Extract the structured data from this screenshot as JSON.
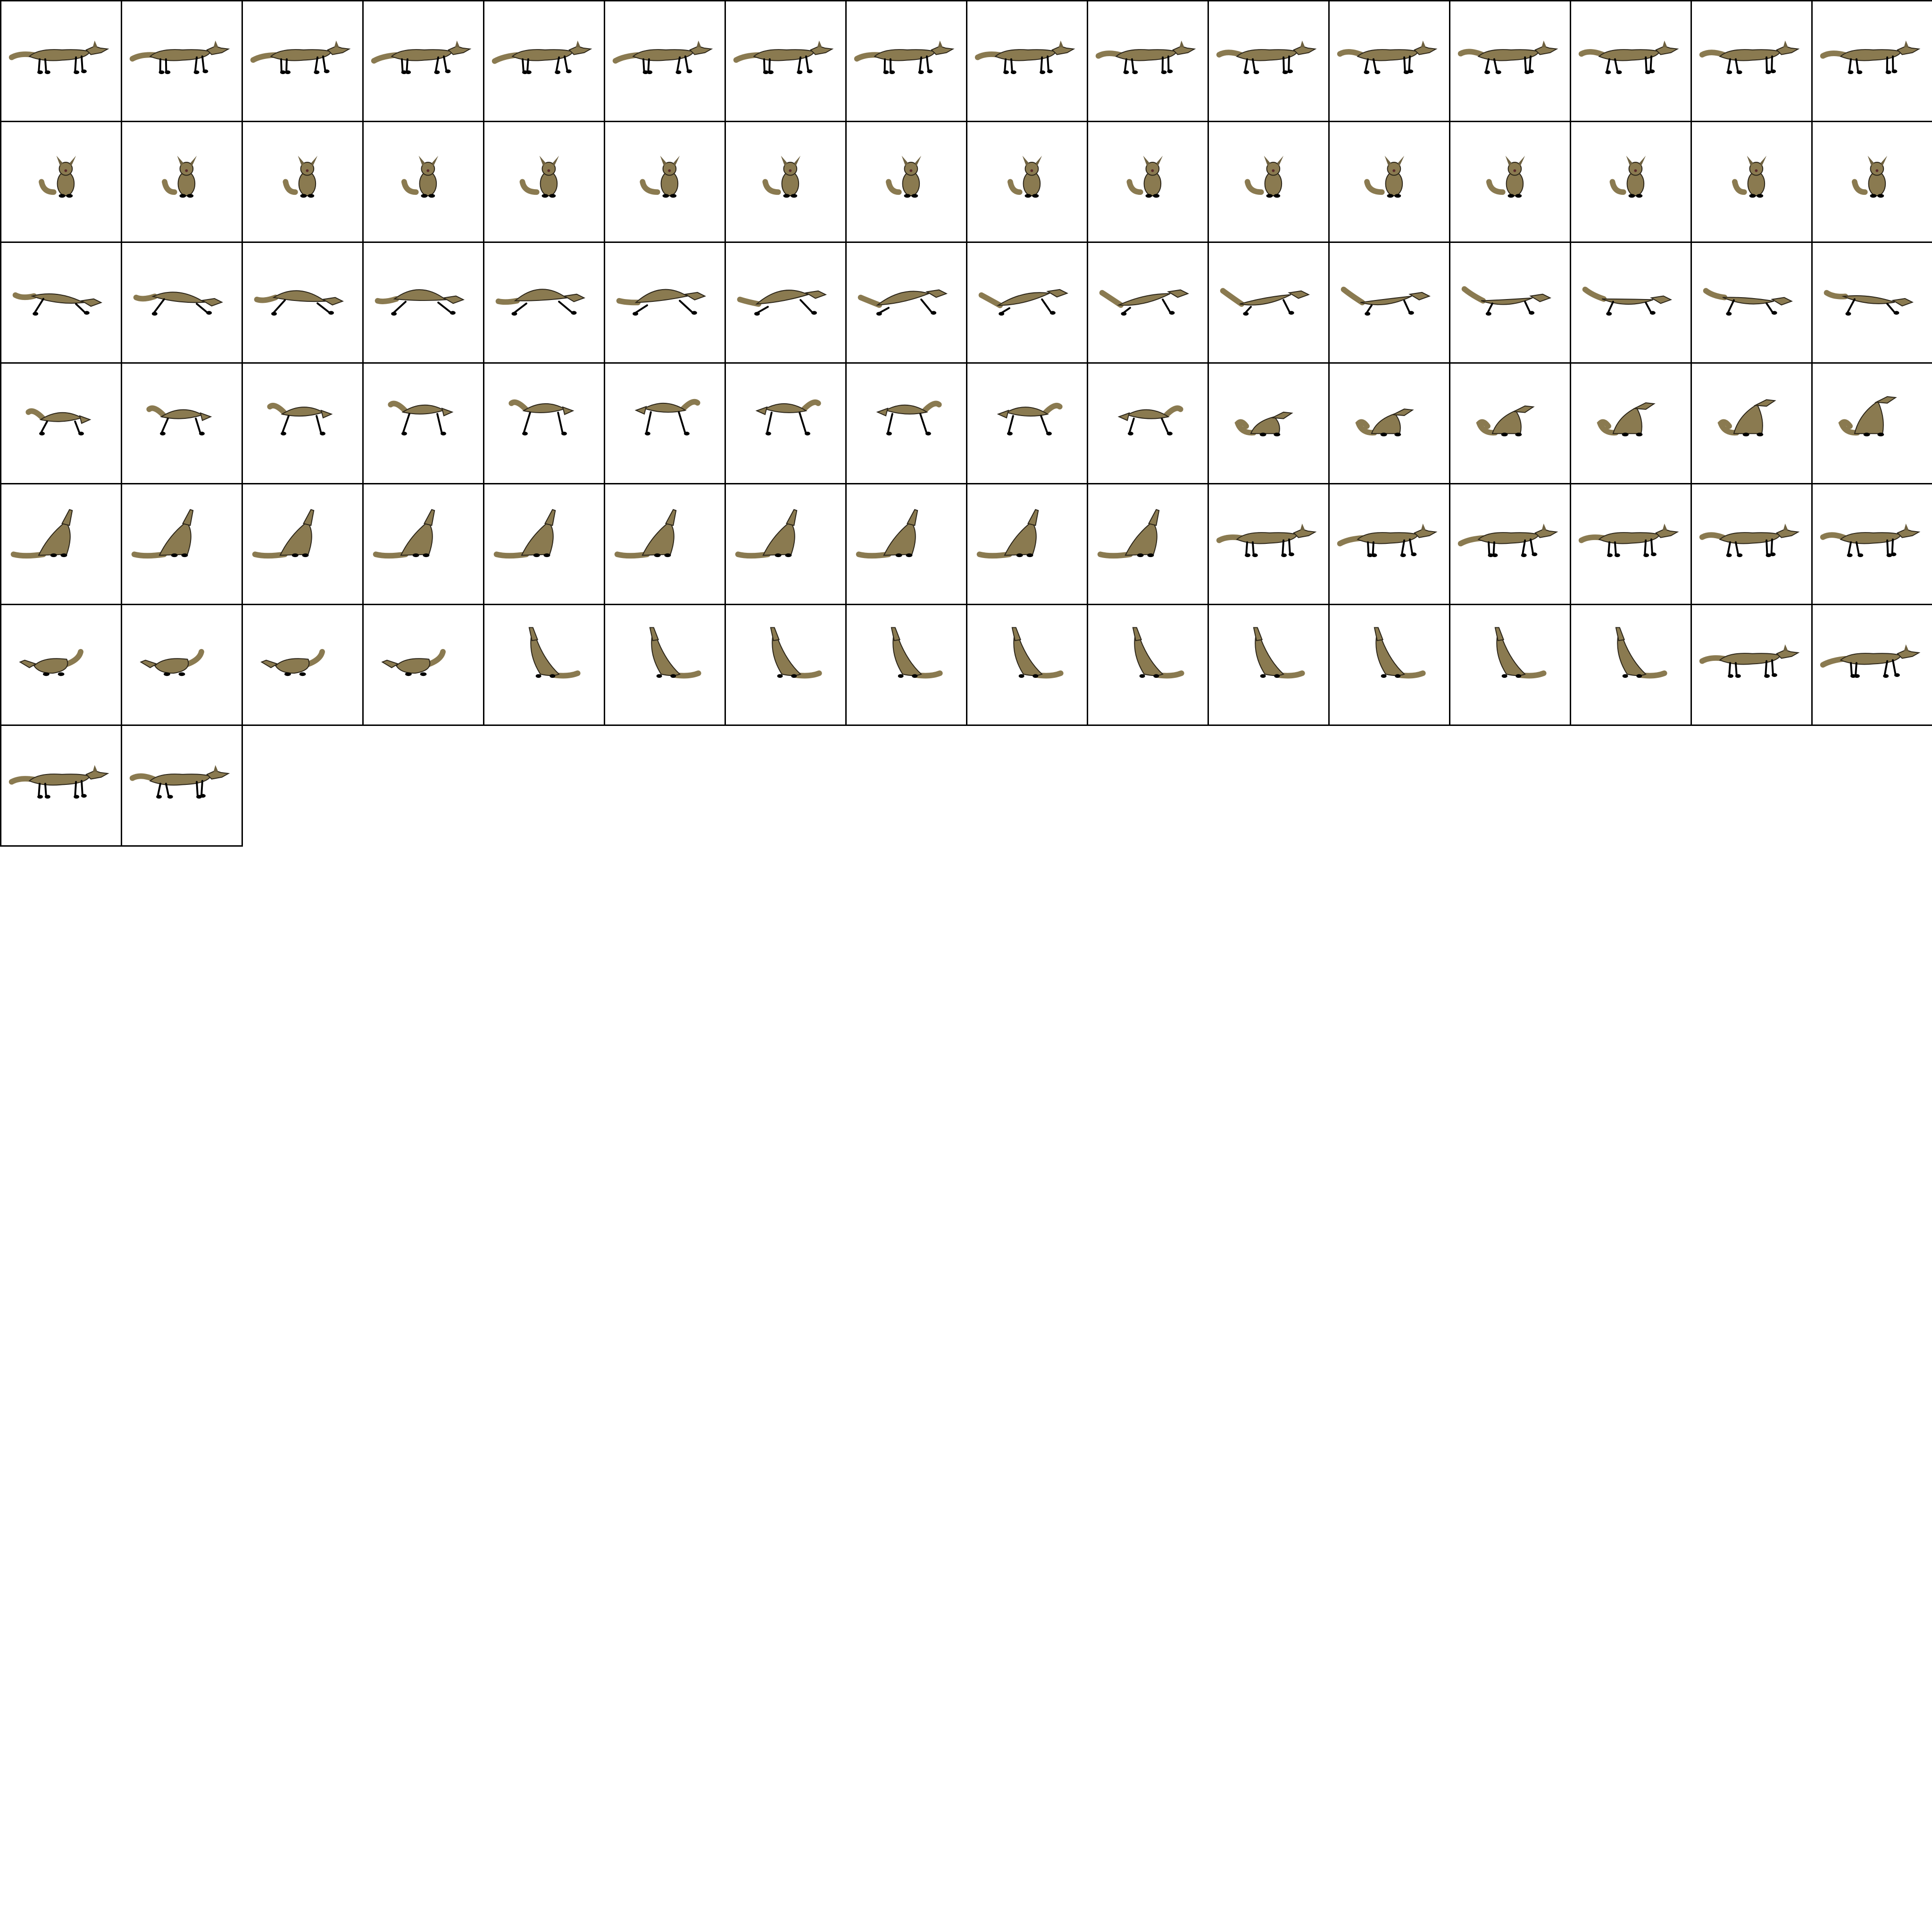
{
  "sprite_sheet": {
    "columns": 16,
    "frame_count": 98,
    "colors": {
      "background": "#ffffff",
      "grid_line": "#000000",
      "fur": "#8a7a50",
      "fur_shade": "#6e6140",
      "outline": "#2a2418",
      "paw": "#000000",
      "eye": "#5a2a2a"
    },
    "animations": [
      {
        "name": "walk",
        "pose": "walk",
        "frames": 16
      },
      {
        "name": "sit-front",
        "pose": "sit-front",
        "frames": 16
      },
      {
        "name": "run",
        "pose": "run",
        "frames": 16
      },
      {
        "name": "pounce",
        "pose": "pounce",
        "frames": 10
      },
      {
        "name": "sit-down",
        "pose": "sit-side",
        "frames": 6
      },
      {
        "name": "howl-sitting",
        "pose": "howl-sit",
        "frames": 10
      },
      {
        "name": "stand-up",
        "pose": "walk",
        "frames": 6
      },
      {
        "name": "crouch",
        "pose": "crouch",
        "frames": 4
      },
      {
        "name": "howl-rearing",
        "pose": "howl-rear",
        "frames": 10
      },
      {
        "name": "return-to-walk",
        "pose": "walk",
        "frames": 4
      }
    ]
  }
}
